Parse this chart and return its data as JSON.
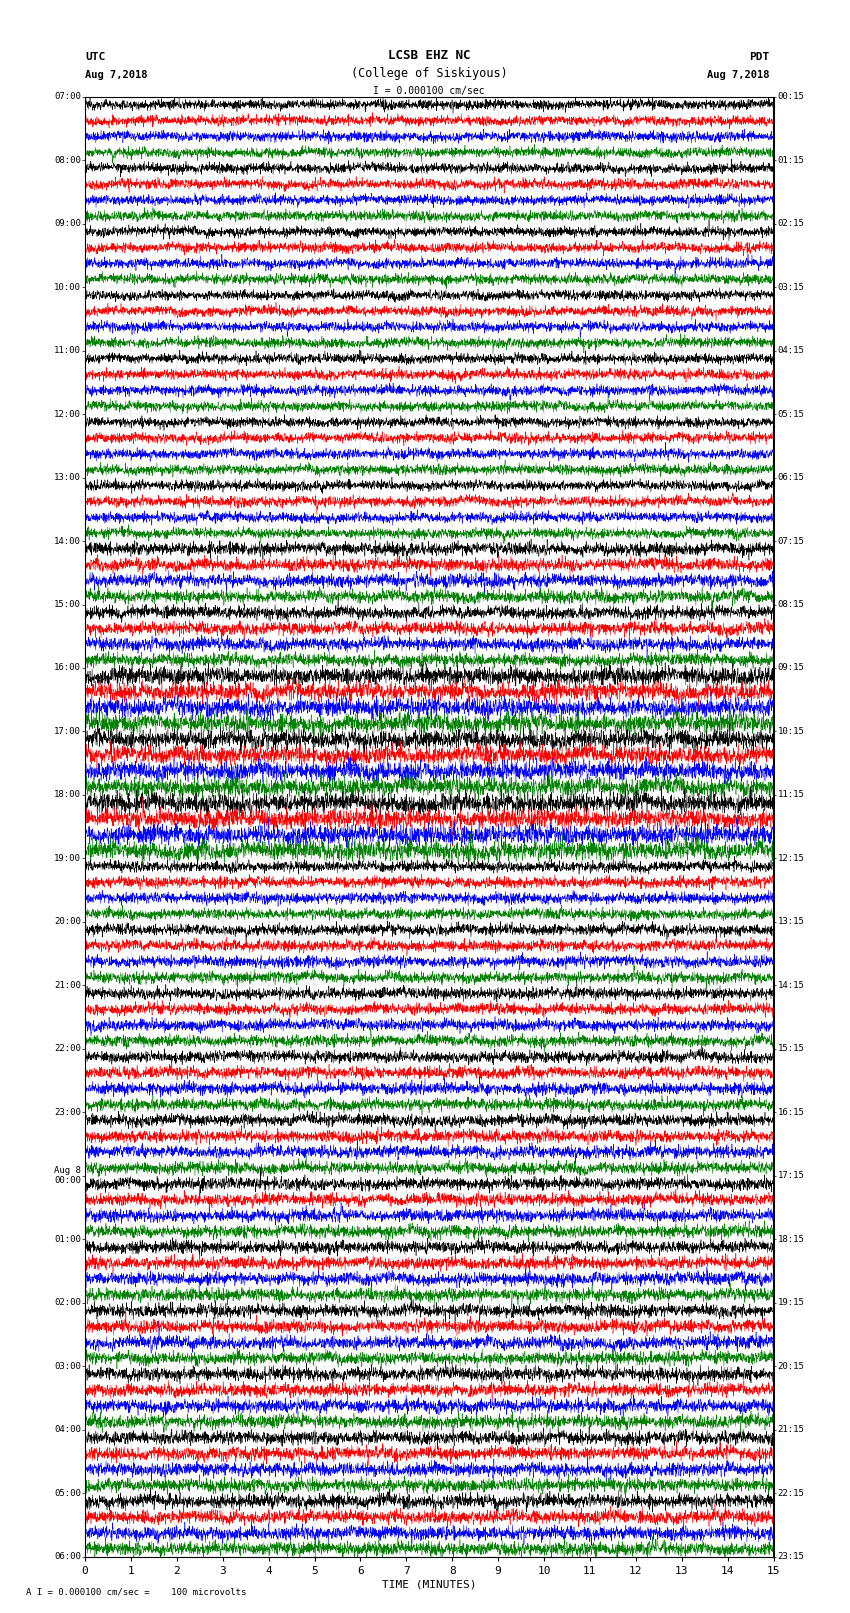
{
  "title_line1": "LCSB EHZ NC",
  "title_line2": "(College of Siskiyous)",
  "scale_label": "I = 0.000100 cm/sec",
  "footer_label": "A I = 0.000100 cm/sec =    100 microvolts",
  "utc_times": [
    "07:00",
    "08:00",
    "09:00",
    "10:00",
    "11:00",
    "12:00",
    "13:00",
    "14:00",
    "15:00",
    "16:00",
    "17:00",
    "18:00",
    "19:00",
    "20:00",
    "21:00",
    "22:00",
    "23:00",
    "Aug 8\n00:00",
    "01:00",
    "02:00",
    "03:00",
    "04:00",
    "05:00",
    "06:00"
  ],
  "pdt_times": [
    "00:15",
    "01:15",
    "02:15",
    "03:15",
    "04:15",
    "05:15",
    "06:15",
    "07:15",
    "08:15",
    "09:15",
    "10:15",
    "11:15",
    "12:15",
    "13:15",
    "14:15",
    "15:15",
    "16:15",
    "17:15",
    "18:15",
    "19:15",
    "20:15",
    "21:15",
    "22:15",
    "23:15"
  ],
  "trace_colors": [
    "black",
    "red",
    "blue",
    "green"
  ],
  "num_hours": 23,
  "traces_per_hour": 4,
  "xlim": [
    0,
    15
  ],
  "bg_color": "white",
  "fig_width": 8.5,
  "fig_height": 16.13,
  "dpi": 100,
  "noise_seed": 12345,
  "n_points": 3000,
  "amp_early": 0.3,
  "amp_late": 0.42,
  "amp_transition": 36
}
